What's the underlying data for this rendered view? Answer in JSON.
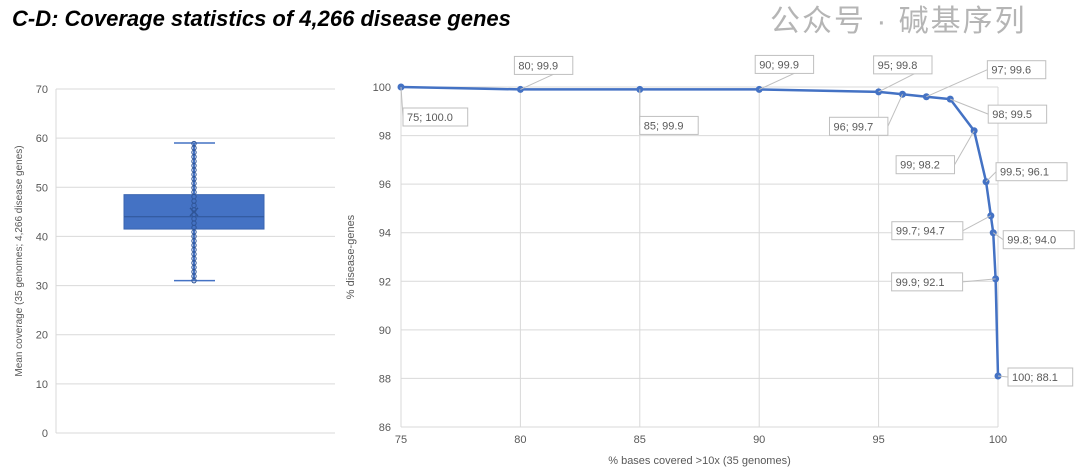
{
  "title": "C-D: Coverage statistics of 4,266 disease genes",
  "watermark": "公众号 · 碱基序列",
  "chart_data": [
    {
      "type": "box",
      "ylabel": "Mean coverage (35 genomes; 4,266 disease genes)",
      "ylim": [
        0,
        70
      ],
      "yticks": [
        0,
        10,
        20,
        30,
        40,
        50,
        60,
        70
      ],
      "grid": true,
      "box": {
        "min": 31,
        "q1": 41.5,
        "median": 44,
        "mean": 45,
        "q3": 48.5,
        "max": 59
      },
      "color": "#4472C4"
    },
    {
      "type": "line",
      "xlabel": "% bases covered >10x (35 genomes)",
      "ylabel": "% disease-genes",
      "xlim": [
        75,
        100
      ],
      "ylim": [
        86,
        100
      ],
      "xticks": [
        75,
        80,
        85,
        90,
        95,
        100
      ],
      "yticks": [
        86,
        88,
        90,
        92,
        94,
        96,
        98,
        100
      ],
      "grid": true,
      "color": "#4472C4",
      "points": [
        [
          75,
          100.0
        ],
        [
          80,
          99.9
        ],
        [
          85,
          99.9
        ],
        [
          90,
          99.9
        ],
        [
          95,
          99.8
        ],
        [
          96,
          99.7
        ],
        [
          97,
          99.6
        ],
        [
          98,
          99.5
        ],
        [
          99,
          98.2
        ],
        [
          99.5,
          96.1
        ],
        [
          99.7,
          94.7
        ],
        [
          99.8,
          94.0
        ],
        [
          99.9,
          92.1
        ],
        [
          100,
          88.1
        ]
      ],
      "labels": [
        "75; 100.0",
        "80; 99.9",
        "85; 99.9",
        "90; 99.9",
        "95; 99.8",
        "96; 99.7",
        "97; 99.6",
        "98; 99.5",
        "99; 98.2",
        "99.5; 96.1",
        "99.7; 94.7",
        "99.8; 94.0",
        "99.9; 92.1",
        "100; 88.1"
      ]
    }
  ]
}
